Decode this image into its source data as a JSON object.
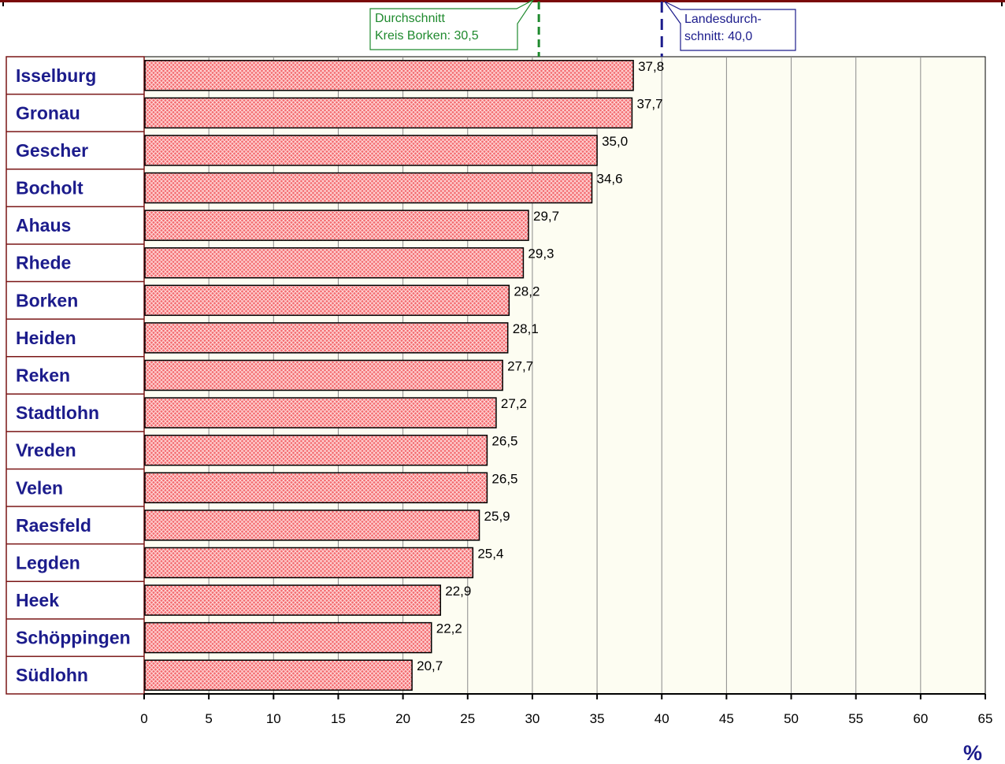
{
  "chart_data": {
    "type": "bar",
    "orientation": "horizontal",
    "categories": [
      "Isselburg",
      "Gronau",
      "Gescher",
      "Bocholt",
      "Ahaus",
      "Rhede",
      "Borken",
      "Heiden",
      "Reken",
      "Stadtlohn",
      "Vreden",
      "Velen",
      "Raesfeld",
      "Legden",
      "Heek",
      "Schöppingen",
      "Südlohn"
    ],
    "values": [
      37.8,
      37.7,
      35.0,
      34.6,
      29.7,
      29.3,
      28.2,
      28.1,
      27.7,
      27.2,
      26.5,
      26.5,
      25.9,
      25.4,
      22.9,
      22.2,
      20.7
    ],
    "value_labels": [
      "37,8",
      "37,7",
      "35,0",
      "34,6",
      "29,7",
      "29,3",
      "28,2",
      "28,1",
      "27,7",
      "27,2",
      "26,5",
      "26,5",
      "25,9",
      "25,4",
      "22,9",
      "22,2",
      "20,7"
    ],
    "xlim": [
      0,
      65
    ],
    "xticks": [
      0,
      5,
      10,
      15,
      20,
      25,
      30,
      35,
      40,
      45,
      50,
      55,
      60,
      65
    ],
    "xlabel": "%",
    "grid": true,
    "bar_color": "#f05a5f",
    "bar_pattern": "crosshatch",
    "label_color": "#1c1c8c",
    "reference_lines": [
      {
        "value": 30.5,
        "label_lines": [
          "Durchschnitt",
          "Kreis Borken: 30,5"
        ],
        "color": "#1f8a2e",
        "style": "dashed"
      },
      {
        "value": 40.0,
        "label_lines": [
          "Landesdurch-",
          "schnitt:  40,0"
        ],
        "color": "#1c1c8c",
        "style": "dashed"
      }
    ]
  }
}
